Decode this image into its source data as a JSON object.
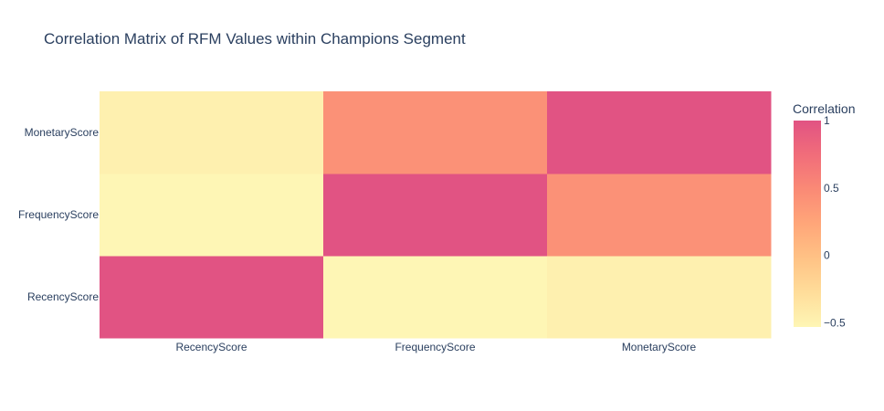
{
  "chart_data": {
    "type": "heatmap",
    "title": "Correlation Matrix of RFM Values within Champions Segment",
    "x_categories": [
      "RecencyScore",
      "FrequencyScore",
      "MonetaryScore"
    ],
    "y_categories": [
      "RecencyScore",
      "FrequencyScore",
      "MonetaryScore"
    ],
    "values": [
      [
        1.0,
        -0.53,
        -0.47
      ],
      [
        -0.53,
        1.0,
        0.43
      ],
      [
        -0.47,
        0.43,
        1.0
      ]
    ],
    "colorbar": {
      "title": "Correlation",
      "range": [
        -0.53,
        1.0
      ],
      "ticks": [
        {
          "value": 1,
          "label": "1"
        },
        {
          "value": 0.5,
          "label": "0.5"
        },
        {
          "value": 0,
          "label": "0"
        },
        {
          "value": -0.5,
          "label": "−0.5"
        }
      ]
    },
    "colorscale": [
      [
        0.0,
        "#fef6b5"
      ],
      [
        0.167,
        "#ffdd9a"
      ],
      [
        0.333,
        "#ffc285"
      ],
      [
        0.5,
        "#ffa679"
      ],
      [
        0.667,
        "#fa8a76"
      ],
      [
        0.833,
        "#f16d7a"
      ],
      [
        1.0,
        "#e15383"
      ]
    ]
  }
}
